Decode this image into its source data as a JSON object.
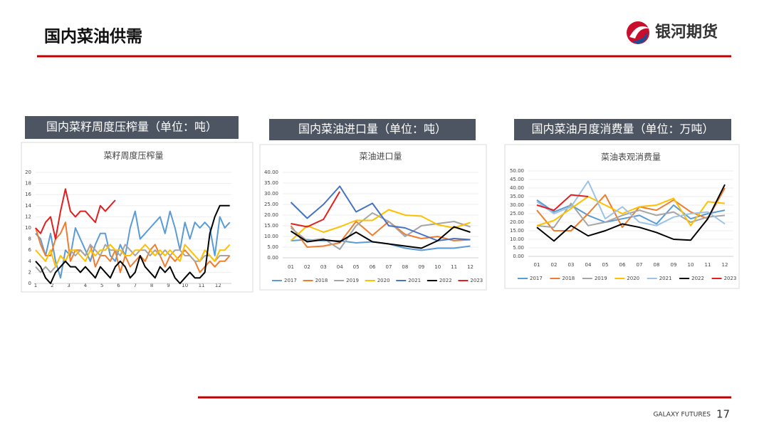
{
  "header": {
    "title": "国内菜油供需",
    "logo_text": "银河期货"
  },
  "footer": {
    "brand": "GALAXY FUTURES",
    "page": "17"
  },
  "chart_data": [
    {
      "type": "line",
      "caption": "国内菜籽周度压榨量（单位：吨）",
      "title": "菜籽周度压榨量",
      "x": [
        1,
        1.3,
        1.6,
        1.9,
        2.2,
        2.5,
        2.8,
        3.1,
        3.4,
        3.7,
        4,
        4.3,
        4.6,
        4.9,
        5.2,
        5.5,
        5.8,
        6.1,
        6.4,
        6.7,
        7,
        7.3,
        7.6,
        7.9,
        8.2,
        8.5,
        8.8,
        9.1,
        9.4,
        9.7,
        10,
        10.3,
        10.6,
        10.9,
        11.2,
        11.5,
        11.8,
        12.1,
        12.4,
        12.7
      ],
      "xlim": [
        1,
        12.8
      ],
      "xticks": [
        1,
        2,
        3,
        4,
        5,
        6,
        7,
        8,
        9,
        10,
        11,
        12
      ],
      "ylim": [
        0,
        20
      ],
      "yticks": [
        0,
        2,
        4,
        6,
        8,
        10,
        12,
        14,
        16,
        18,
        20
      ],
      "grid": true,
      "series": [
        {
          "color": "#5b9bd5",
          "values": [
            9,
            8,
            5,
            9,
            4,
            1,
            6,
            5,
            10,
            8,
            6,
            4,
            7,
            9,
            9,
            5,
            4,
            7,
            5,
            10,
            13,
            8,
            9,
            10,
            11,
            12,
            9,
            13,
            10,
            6,
            11,
            8,
            11,
            10,
            11,
            10,
            5,
            12,
            10,
            11
          ]
        },
        {
          "color": "#ed7d31",
          "values": [
            10,
            7,
            5,
            5,
            8,
            9,
            11,
            4,
            6,
            6,
            5,
            7,
            3,
            5,
            5,
            4,
            6,
            2,
            5,
            3,
            4,
            5,
            4,
            6,
            7,
            5,
            3,
            5,
            4,
            5,
            6,
            5,
            4,
            2,
            3,
            4,
            3,
            4,
            4,
            5
          ]
        },
        {
          "color": "#a5a5a5",
          "values": [
            3,
            2,
            3,
            2,
            3,
            5,
            4,
            6,
            5,
            6,
            5,
            7,
            6,
            5,
            7,
            6,
            6,
            5,
            7,
            6,
            5,
            6,
            6,
            5,
            6,
            5,
            6,
            5,
            6,
            6,
            5,
            5,
            4,
            4,
            5,
            5,
            4,
            5,
            5,
            5
          ]
        },
        {
          "color": "#ffc000",
          "values": [
            6,
            5,
            4,
            6,
            3,
            5,
            4,
            6,
            6,
            5,
            4,
            6,
            5,
            6,
            6,
            7,
            6,
            6,
            5,
            5,
            6,
            6,
            7,
            6,
            5,
            6,
            5,
            6,
            5,
            4,
            7,
            6,
            5,
            4,
            6,
            5,
            4,
            6,
            6,
            7
          ]
        },
        {
          "color": "#000000",
          "values": [
            4,
            3,
            1,
            0,
            2,
            3,
            4,
            3,
            3,
            2,
            3,
            2,
            1,
            3,
            2,
            1,
            3,
            4,
            3,
            1,
            2,
            5,
            3,
            2,
            1,
            3,
            2,
            3,
            1,
            0,
            1,
            2,
            1,
            1,
            2,
            9,
            12,
            14,
            14,
            14
          ]
        },
        {
          "color": "#e02020",
          "values": [
            10,
            9,
            11,
            12,
            8,
            13,
            17,
            13,
            12,
            13,
            13,
            12,
            11,
            14,
            13,
            14,
            15,
            null,
            null,
            null,
            null,
            null,
            null,
            null,
            null,
            null,
            null,
            null,
            null,
            null,
            null,
            null,
            null,
            null,
            null,
            null,
            null,
            null,
            null,
            null
          ]
        }
      ]
    },
    {
      "type": "line",
      "caption": "国内菜油进口量（单位：吨）",
      "title": "菜油进口量",
      "categories": [
        "01",
        "02",
        "03",
        "04",
        "05",
        "06",
        "07",
        "08",
        "09",
        "10",
        "11",
        "12"
      ],
      "ylim": [
        0,
        40
      ],
      "yticks": [
        {
          "value": 0,
          "label": "0.00"
        },
        {
          "value": 5,
          "label": "5.00"
        },
        {
          "value": 10,
          "label": "10.00"
        },
        {
          "value": 15,
          "label": "15.00"
        },
        {
          "value": 20,
          "label": "20.00"
        },
        {
          "value": 25,
          "label": "25.00"
        },
        {
          "value": 30,
          "label": "30.00"
        },
        {
          "value": 35,
          "label": "35.00"
        },
        {
          "value": 40,
          "label": "40.00"
        }
      ],
      "grid": true,
      "series": [
        {
          "name": "2017",
          "color": "#5b9bd5",
          "values": [
            8,
            8.5,
            8,
            8,
            7,
            7.5,
            6.5,
            4.5,
            3.5,
            4.5,
            4.5,
            5.5
          ]
        },
        {
          "name": "2018",
          "color": "#ed7d31",
          "values": [
            15,
            5,
            5.5,
            7,
            17,
            10.5,
            17,
            11,
            9,
            10,
            8,
            8.5
          ]
        },
        {
          "name": "2019",
          "color": "#a5a5a5",
          "values": [
            14,
            8,
            9,
            4,
            15,
            21,
            17,
            10,
            15,
            16,
            17,
            14.5
          ]
        },
        {
          "name": "2020",
          "color": "#ffc000",
          "values": [
            8,
            15,
            12,
            14.5,
            17.5,
            17.5,
            22.5,
            20,
            19.5,
            15.5,
            14,
            16.5
          ]
        },
        {
          "name": "2021",
          "color": "#4472c4",
          "values": [
            26,
            18.5,
            25,
            33.5,
            21.5,
            25.5,
            15,
            14,
            11,
            8,
            9,
            8.5
          ]
        },
        {
          "name": "2022",
          "color": "#000000",
          "values": [
            12.5,
            7.5,
            8.5,
            7.5,
            12,
            7.5,
            6.5,
            5.5,
            4.5,
            8,
            14.5,
            12
          ]
        },
        {
          "name": "2023",
          "color": "#e02020",
          "values": [
            16,
            14.5,
            18,
            31,
            null,
            null,
            null,
            null,
            null,
            null,
            null,
            null
          ]
        }
      ]
    },
    {
      "type": "line",
      "caption": "国内菜油月度消费量（单位：万吨）",
      "title": "菜油表观消费量",
      "categories": [
        "01",
        "02",
        "03",
        "04",
        "05",
        "06",
        "07",
        "08",
        "09",
        "10",
        "11",
        "12"
      ],
      "ylim": [
        0,
        50
      ],
      "yticks": [
        {
          "value": 0,
          "label": "0.00"
        },
        {
          "value": 5,
          "label": "5.00"
        },
        {
          "value": 10,
          "label": "10.00"
        },
        {
          "value": 15,
          "label": "15.00"
        },
        {
          "value": 20,
          "label": "20.00"
        },
        {
          "value": 25,
          "label": "25.00"
        },
        {
          "value": 30,
          "label": "30.00"
        },
        {
          "value": 35,
          "label": "35.00"
        },
        {
          "value": 40,
          "label": "40.00"
        },
        {
          "value": 45,
          "label": "45.00"
        },
        {
          "value": 50,
          "label": "50.00"
        }
      ],
      "grid": true,
      "series": [
        {
          "name": "2017",
          "color": "#5b9bd5",
          "values": [
            33,
            26,
            30,
            24,
            20,
            22,
            24,
            19,
            30,
            22,
            25,
            27
          ]
        },
        {
          "name": "2018",
          "color": "#ed7d31",
          "values": [
            27,
            15,
            15,
            25,
            36,
            17,
            29,
            27,
            33,
            26,
            22,
            40
          ]
        },
        {
          "name": "2019",
          "color": "#a5a5a5",
          "values": [
            18,
            17,
            31,
            18,
            20,
            24,
            27,
            24,
            26,
            20,
            23,
            24
          ]
        },
        {
          "name": "2020",
          "color": "#ffc000",
          "values": [
            18,
            21,
            28,
            35,
            30,
            25,
            29,
            30,
            34,
            18,
            32,
            31
          ]
        },
        {
          "name": "2021",
          "color": "#9dc3e6",
          "values": [
            32,
            25,
            29,
            44,
            22,
            29,
            20,
            18,
            23,
            25,
            26,
            19
          ]
        },
        {
          "name": "2022",
          "color": "#000000",
          "values": [
            17,
            9,
            18,
            12,
            15,
            19,
            17,
            14,
            10,
            9.5,
            22,
            42
          ]
        },
        {
          "name": "2023",
          "color": "#e02020",
          "values": [
            30,
            27,
            36,
            35,
            null,
            null,
            null,
            null,
            null,
            null,
            null,
            null
          ]
        }
      ]
    }
  ]
}
